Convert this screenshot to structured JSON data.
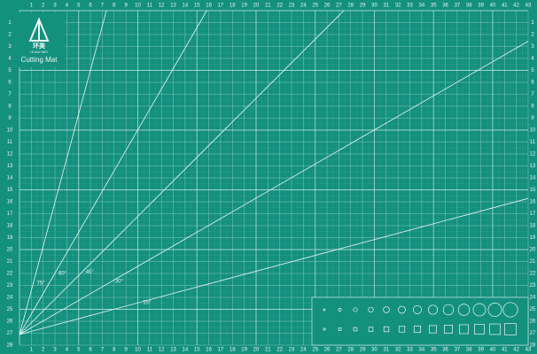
{
  "logo": {
    "brand": "环美",
    "pinyin": "HUAN MEI",
    "product": "Cutting Mat"
  },
  "top_ruler": [
    1,
    2,
    3,
    4,
    5,
    6,
    7,
    8,
    9,
    10,
    11,
    12,
    13,
    14,
    15,
    16,
    17,
    18,
    19,
    20,
    21,
    22,
    23,
    24,
    25,
    26,
    27,
    28,
    29,
    30,
    31,
    32,
    33,
    34,
    35,
    36,
    37,
    38,
    39,
    40,
    41,
    42,
    43
  ],
  "side_ruler": [
    1,
    2,
    3,
    4,
    5,
    6,
    7,
    8,
    9,
    10,
    11,
    12,
    13,
    14,
    15,
    16,
    17,
    18,
    19,
    20,
    21,
    22,
    23,
    24,
    25,
    26,
    27,
    28
  ],
  "angle_lines": [
    {
      "angle": 75,
      "label": "75°"
    },
    {
      "angle": 60,
      "label": "60°"
    },
    {
      "angle": 45,
      "label": "45°"
    },
    {
      "angle": 30,
      "label": "30°"
    },
    {
      "angle": 15,
      "label": "15°"
    }
  ]
}
